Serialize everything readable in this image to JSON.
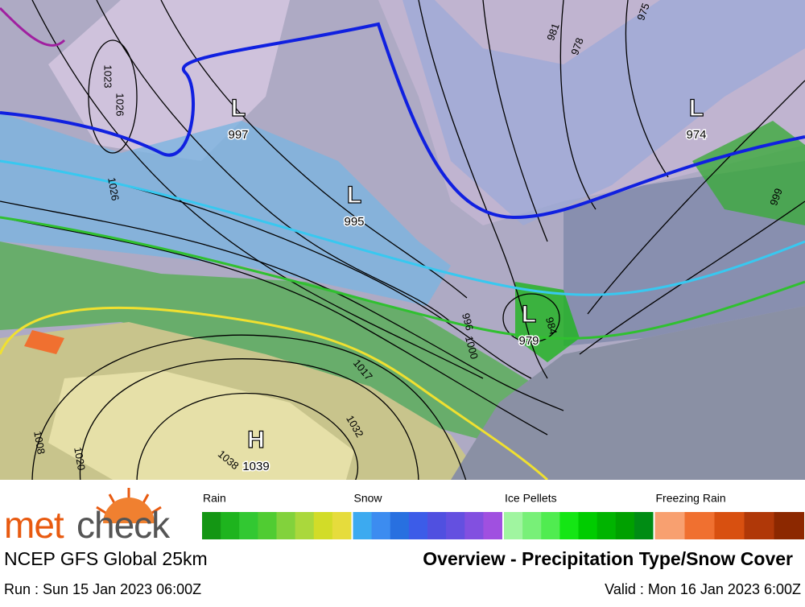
{
  "map": {
    "systems": [
      {
        "symbol": "L",
        "pressure": 997
      },
      {
        "symbol": "L",
        "pressure": 995
      },
      {
        "symbol": "L",
        "pressure": 979
      },
      {
        "symbol": "L",
        "pressure": 974
      },
      {
        "symbol": "H",
        "pressure": 1039
      }
    ],
    "isobar_labels": [
      1023,
      1026,
      1026,
      981,
      978,
      975,
      999,
      996,
      1000,
      984,
      1017,
      1032,
      1038,
      1020,
      1008
    ]
  },
  "legend": [
    {
      "label": "Rain",
      "colors": [
        "#149614",
        "#1eb41e",
        "#32c832",
        "#50cc32",
        "#82d23c",
        "#aad83c",
        "#d2dc28",
        "#e6dc3c"
      ]
    },
    {
      "label": "Snow",
      "colors": [
        "#3caaf0",
        "#3c8cf0",
        "#2870e0",
        "#3c5ce8",
        "#5050e0",
        "#6450e0",
        "#8250e0",
        "#a050e0"
      ]
    },
    {
      "label": "Ice Pellets",
      "colors": [
        "#a0f5a0",
        "#78f078",
        "#50ec50",
        "#14e614",
        "#00cc00",
        "#00b400",
        "#00a000",
        "#008c14"
      ]
    },
    {
      "label": "Freezing Rain",
      "colors": [
        "#f8a070",
        "#f07030",
        "#d85010",
        "#b03808",
        "#8c2800"
      ]
    }
  ],
  "footer": {
    "logo_a": "met",
    "logo_b": "check",
    "model": "NCEP GFS Global 25km",
    "title": "Overview - Precipitation Type/Snow Cover",
    "run": "Run : Sun 15 Jan 2023 06:00Z",
    "valid": "Valid : Mon 16 Jan 2023 6:00Z"
  }
}
